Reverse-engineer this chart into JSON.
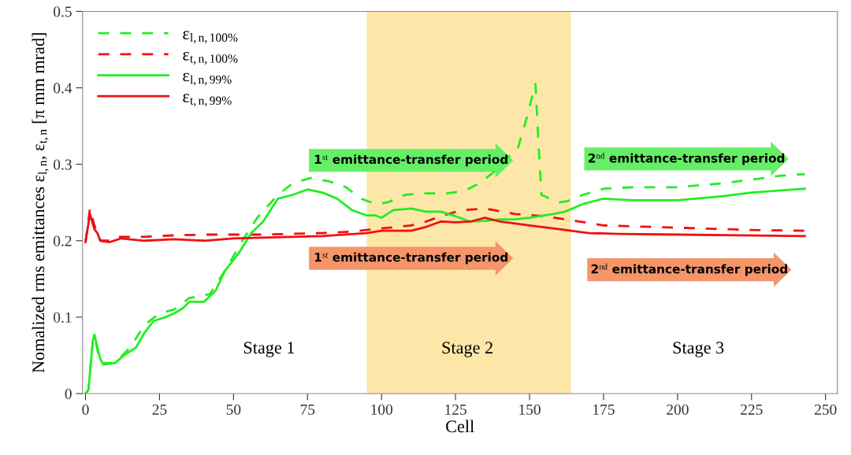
{
  "chart_data": {
    "type": "line",
    "xlabel": "Cell",
    "ylabel": "Nomalized rms emittances ε$_{l,n}$, ε$_{t,n}$ [π mm mrad]",
    "xlim": [
      -1,
      254
    ],
    "xticks": [
      0,
      25,
      50,
      75,
      100,
      125,
      150,
      175,
      200,
      225,
      250
    ],
    "ylim": [
      0,
      0.5
    ],
    "yticks": [
      0,
      0.1,
      0.2,
      0.3,
      0.4,
      0.5
    ],
    "grid": false,
    "legend": "top left",
    "marker": "none",
    "bands": [
      {
        "axis": "x",
        "from": 95,
        "to": 164,
        "color": "#fde7a8"
      }
    ],
    "annotations": [
      {
        "text": "Stage 1"
      },
      {
        "text": "Stage 2"
      },
      {
        "text": "Stage 3"
      },
      {
        "text": "1$^{st}$ emittance-transfer period"
      },
      {
        "text": "2$^{nd}$ emittance-transfer period"
      },
      {
        "text": "1$^{st}$ emittance-transfer period"
      },
      {
        "text": "2$^{nd}$ emittance-transfer period"
      }
    ],
    "series": [
      {
        "name": "ε$_{l,n,100%}$",
        "color": "#22ee22",
        "line_style": "dashed",
        "x": [
          0,
          1,
          2.5,
          3,
          5,
          10,
          15,
          20,
          25,
          30,
          35,
          42,
          47,
          53,
          58,
          65,
          70,
          76,
          82,
          88,
          93,
          98,
          102,
          108,
          115,
          122,
          128,
          133,
          138,
          143,
          146,
          149,
          151,
          152,
          153,
          154,
          157,
          160,
          163,
          168,
          175,
          185,
          200,
          215,
          225,
          235,
          243
        ],
        "values": [
          0,
          0.005,
          0.07,
          0.075,
          0.04,
          0.04,
          0.06,
          0.09,
          0.105,
          0.11,
          0.125,
          0.13,
          0.16,
          0.2,
          0.23,
          0.26,
          0.275,
          0.282,
          0.278,
          0.27,
          0.255,
          0.248,
          0.25,
          0.26,
          0.262,
          0.262,
          0.265,
          0.275,
          0.29,
          0.31,
          0.32,
          0.36,
          0.39,
          0.405,
          0.33,
          0.26,
          0.255,
          0.25,
          0.252,
          0.26,
          0.268,
          0.27,
          0.27,
          0.275,
          0.28,
          0.285,
          0.287
        ]
      },
      {
        "name": "ε$_{t,n,100%}$",
        "color": "#ee1111",
        "line_style": "dashed",
        "x": [
          0,
          1.5,
          3,
          5,
          8,
          10,
          20,
          30,
          40,
          60,
          80,
          90,
          100,
          110,
          115,
          120,
          127,
          135,
          145,
          155,
          162,
          175,
          200,
          225,
          243
        ],
        "values": [
          0.198,
          0.242,
          0.22,
          0.2,
          0.2,
          0.205,
          0.205,
          0.207,
          0.208,
          0.208,
          0.21,
          0.212,
          0.216,
          0.22,
          0.225,
          0.232,
          0.24,
          0.242,
          0.235,
          0.232,
          0.228,
          0.22,
          0.217,
          0.214,
          0.213
        ]
      },
      {
        "name": "ε$_{l,n,99%}$",
        "color": "#22ee22",
        "line_style": "solid",
        "x": [
          0,
          1,
          2.5,
          3,
          5,
          6,
          10,
          13,
          17,
          20,
          23,
          27,
          30,
          33,
          35,
          40,
          44,
          47,
          52,
          56,
          60,
          65,
          70,
          75,
          80,
          85,
          90,
          95,
          98,
          100,
          104,
          110,
          115,
          120,
          125,
          130,
          135,
          140,
          145,
          150,
          158,
          162,
          168,
          175,
          185,
          200,
          215,
          225,
          243
        ],
        "values": [
          0,
          0.005,
          0.07,
          0.077,
          0.045,
          0.038,
          0.04,
          0.05,
          0.06,
          0.08,
          0.095,
          0.1,
          0.105,
          0.112,
          0.12,
          0.12,
          0.135,
          0.16,
          0.185,
          0.21,
          0.225,
          0.255,
          0.26,
          0.267,
          0.263,
          0.255,
          0.24,
          0.233,
          0.233,
          0.23,
          0.24,
          0.242,
          0.238,
          0.238,
          0.232,
          0.225,
          0.226,
          0.228,
          0.228,
          0.23,
          0.235,
          0.238,
          0.248,
          0.255,
          0.253,
          0.253,
          0.258,
          0.263,
          0.268
        ]
      },
      {
        "name": "ε$_{t,n,99%}$",
        "color": "#ee1111",
        "line_style": "solid",
        "x": [
          0,
          1.5,
          3,
          4,
          5,
          8,
          12,
          20,
          30,
          40,
          50,
          60,
          80,
          95,
          100,
          110,
          115,
          120,
          125,
          130,
          135,
          140,
          150,
          160,
          170,
          180,
          200,
          220,
          243
        ],
        "values": [
          0.198,
          0.235,
          0.215,
          0.21,
          0.2,
          0.198,
          0.203,
          0.2,
          0.202,
          0.2,
          0.203,
          0.204,
          0.206,
          0.21,
          0.213,
          0.213,
          0.218,
          0.225,
          0.224,
          0.225,
          0.23,
          0.225,
          0.22,
          0.215,
          0.21,
          0.209,
          0.208,
          0.207,
          0.206
        ]
      }
    ]
  }
}
